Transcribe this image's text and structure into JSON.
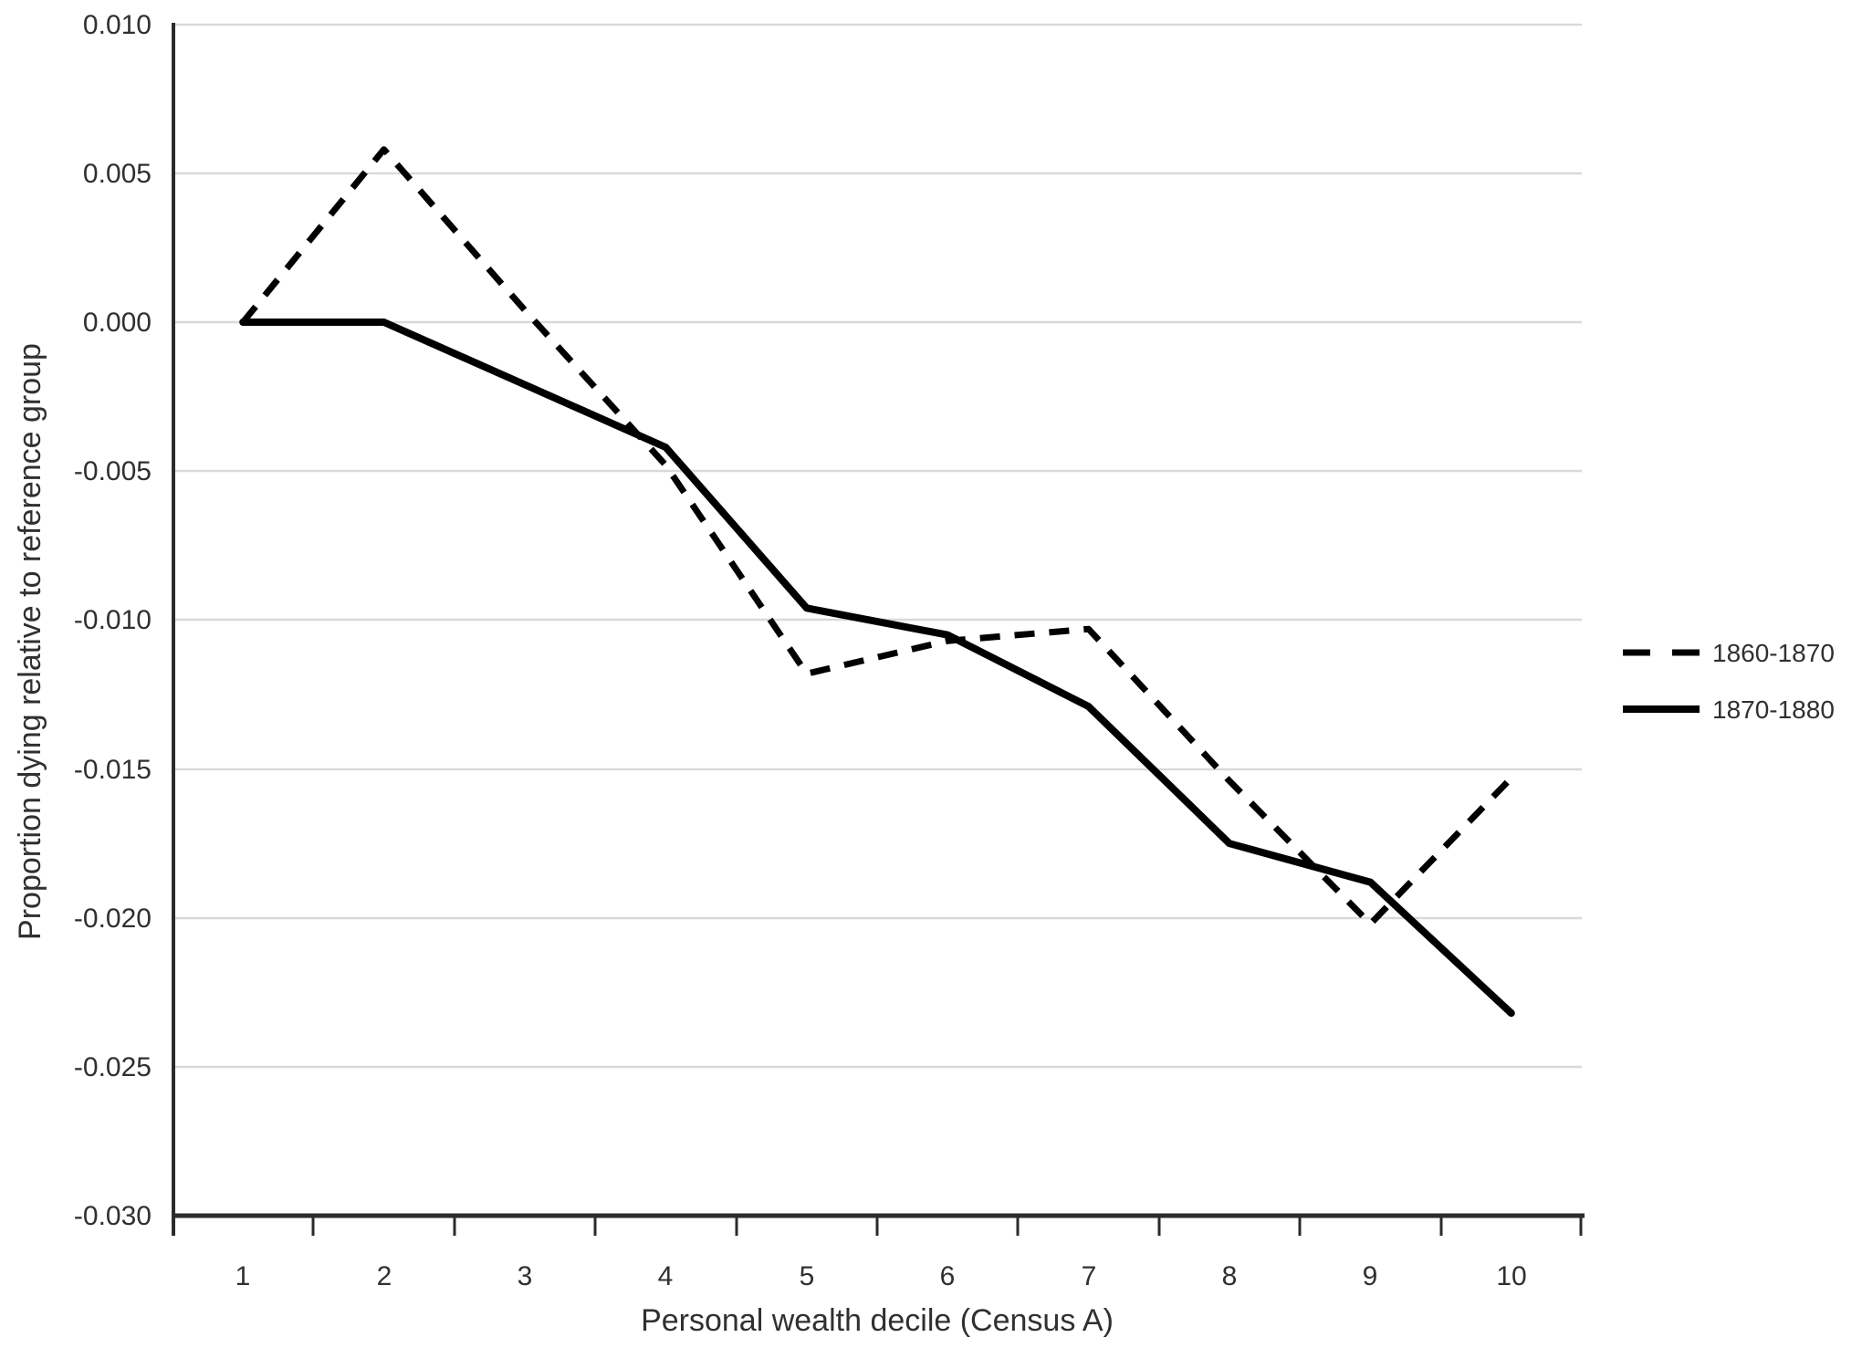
{
  "chart_data": {
    "type": "line",
    "title": "",
    "xlabel": "Personal wealth decile (Census A)",
    "ylabel": "Proportion dying relative to reference group",
    "categories": [
      1,
      2,
      3,
      4,
      5,
      6,
      7,
      8,
      9,
      10
    ],
    "x_tick_labels": [
      "1",
      "2",
      "3",
      "4",
      "5",
      "6",
      "7",
      "8",
      "9",
      "10"
    ],
    "y_tick_labels": [
      "0.010",
      "0.005",
      "0.000",
      "-0.005",
      "-0.010",
      "-0.015",
      "-0.020",
      "-0.025",
      "-0.030"
    ],
    "y_tick_values": [
      0.01,
      0.005,
      0.0,
      -0.005,
      -0.01,
      -0.015,
      -0.02,
      -0.025,
      -0.03
    ],
    "ylim": [
      -0.03,
      0.01
    ],
    "xlim_categories": [
      1,
      10
    ],
    "grid": true,
    "gridlines": "horizontal",
    "legend_position": "right",
    "series": [
      {
        "name": "1860-1870",
        "style": "dashed",
        "color": "#000000",
        "values": [
          0.0,
          0.0058,
          0.0004,
          -0.0048,
          -0.0118,
          -0.0107,
          -0.0103,
          -0.0154,
          -0.0202,
          -0.0153
        ]
      },
      {
        "name": "1870-1880",
        "style": "solid",
        "color": "#000000",
        "values": [
          0.0,
          0.0,
          -0.0021,
          -0.0042,
          -0.0096,
          -0.0105,
          -0.0129,
          -0.0175,
          -0.0188,
          -0.0232
        ]
      }
    ],
    "colors": {
      "series_line": "#000000",
      "gridline": "#d9d9d9",
      "axis": "#2b2b2b",
      "text": "#303030",
      "background": "#ffffff"
    }
  }
}
